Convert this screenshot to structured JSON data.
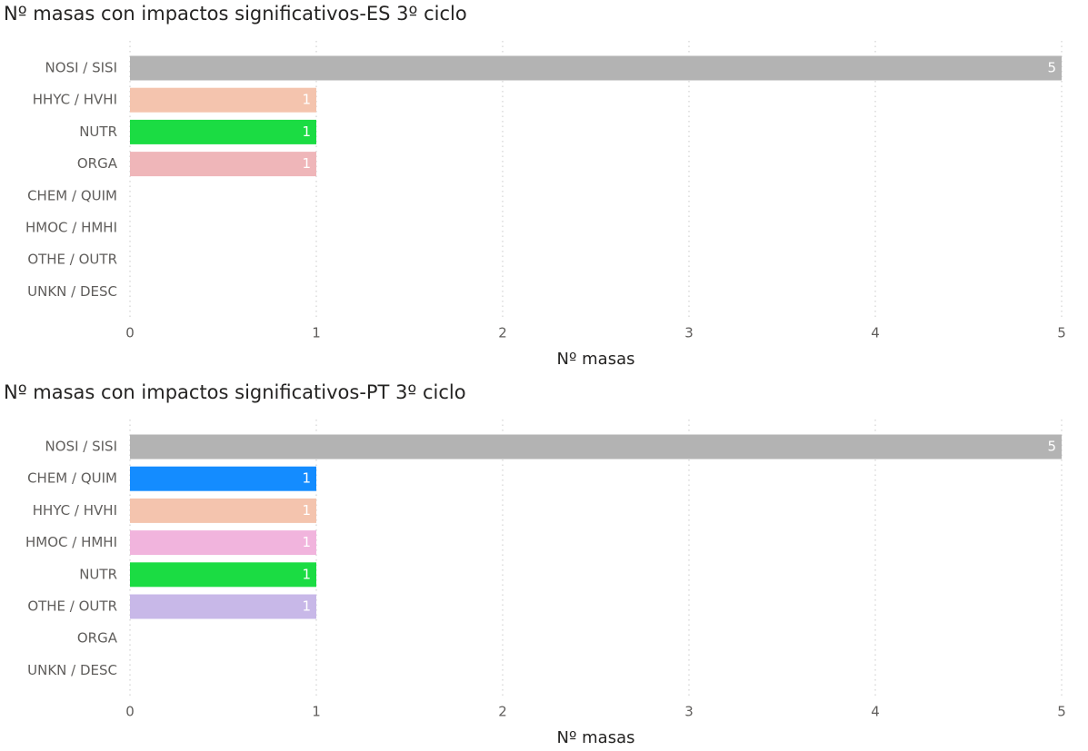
{
  "chart_data": [
    {
      "type": "bar",
      "orientation": "horizontal",
      "title": "Nº masas con impactos significativos-ES 3º ciclo",
      "x_label": "Nº masas",
      "categories": [
        "NOSI / SISI",
        "HHYC / HVHI",
        "NUTR",
        "ORGA",
        "CHEM / QUIM",
        "HMOC / HMHI",
        "OTHE / OUTR",
        "UNKN / DESC"
      ],
      "values": [
        5,
        1,
        1,
        1,
        null,
        null,
        null,
        null
      ],
      "colors": [
        "#b3b3b3",
        "#f4c4ae",
        "#1bdc43",
        "#efb6b9",
        null,
        null,
        null,
        null
      ],
      "xlim": [
        0,
        5
      ],
      "xticks": [
        0,
        1,
        2,
        3,
        4,
        5
      ],
      "grid": true
    },
    {
      "type": "bar",
      "orientation": "horizontal",
      "title": "Nº masas con impactos significativos-PT 3º ciclo",
      "x_label": "Nº masas",
      "categories": [
        "NOSI / SISI",
        "CHEM / QUIM",
        "HHYC / HVHI",
        "HMOC / HMHI",
        "NUTR",
        "OTHE / OUTR",
        "ORGA",
        "UNKN / DESC"
      ],
      "values": [
        5,
        1,
        1,
        1,
        1,
        1,
        null,
        null
      ],
      "colors": [
        "#b3b3b3",
        "#148cff",
        "#f4c4ae",
        "#f1b4dd",
        "#1bdc43",
        "#c8b8e8",
        null,
        null
      ],
      "xlim": [
        0,
        5
      ],
      "xticks": [
        0,
        1,
        2,
        3,
        4,
        5
      ],
      "grid": true
    }
  ]
}
